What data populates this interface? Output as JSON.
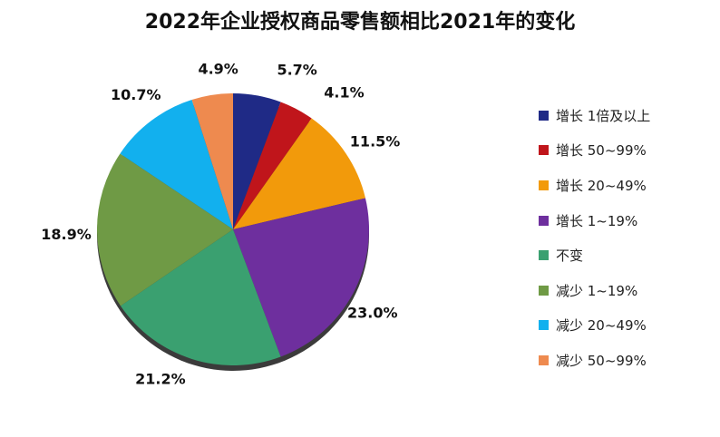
{
  "chart_data": {
    "type": "pie",
    "title": "2022年企业授权商品零售额相比2021年的变化",
    "legend_position": "right",
    "slices": [
      {
        "label": "增长 1倍及以上",
        "value": 5.7,
        "value_label": "5.7%",
        "color": "#1f2a86"
      },
      {
        "label": "增长 50~99%",
        "value": 4.1,
        "value_label": "4.1%",
        "color": "#c0151b"
      },
      {
        "label": "增长 20~49%",
        "value": 11.5,
        "value_label": "11.5%",
        "color": "#f29a0b"
      },
      {
        "label": "增长 1~19%",
        "value": 23.0,
        "value_label": "23.0%",
        "color": "#6e2f9e"
      },
      {
        "label": "不变",
        "value": 21.2,
        "value_label": "21.2%",
        "color": "#3aa070"
      },
      {
        "label": "减少 1~19%",
        "value": 18.9,
        "value_label": "18.9%",
        "color": "#6f9a45"
      },
      {
        "label": "减少 20~49%",
        "value": 10.7,
        "value_label": "10.7%",
        "color": "#12b0ee"
      },
      {
        "label": "减少 50~99%",
        "value": 4.9,
        "value_label": "4.9%",
        "color": "#ee8a4f"
      }
    ]
  }
}
